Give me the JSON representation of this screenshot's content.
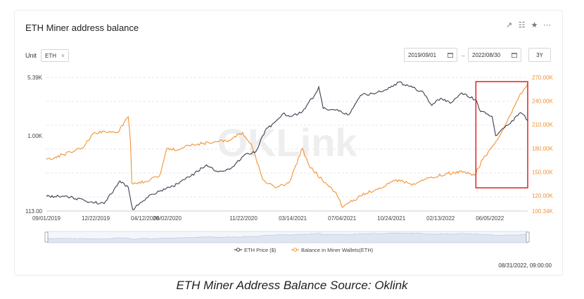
{
  "header": {
    "title": "ETH Miner address balance"
  },
  "toolbar": {
    "icons": [
      "share-icon",
      "table-icon",
      "star-icon",
      "more-icon"
    ]
  },
  "unit": {
    "label": "Unit",
    "value": "ETH"
  },
  "dates": {
    "start": "2019/09/01",
    "end": "2022/08/30",
    "range": "3Y"
  },
  "watermark": "OKLink",
  "timestamp": "08/31/2022, 09:00:00",
  "caption": "ETH Miner Address Balance Source: Oklink",
  "colors": {
    "price": "#3d3d50",
    "balance": "#f39235",
    "highlight": "#e02020"
  },
  "chart_data": {
    "type": "line",
    "x_ticks": [
      "09/01/2019",
      "12/22/2019",
      "04/12/2020",
      "06/02/2020",
      "11/22/2020",
      "03/14/2021",
      "07/04/2021",
      "10/24/2021",
      "02/13/2022",
      "06/05/2022"
    ],
    "y_left_ticks": [
      "5.39K",
      "1.00K",
      "113.00"
    ],
    "y_left_scale": "log",
    "y_right_ticks": [
      "270.00K",
      "240.00K",
      "210.00K",
      "180.00K",
      "150.00K",
      "120.00K",
      "100.34K"
    ],
    "y_right_range": [
      100340,
      270000
    ],
    "series": [
      {
        "name": "ETH Price ($)",
        "axis": "left",
        "points": [
          [
            "2019-09-01",
            172
          ],
          [
            "2019-10-15",
            175
          ],
          [
            "2019-12-01",
            150
          ],
          [
            "2020-01-10",
            140
          ],
          [
            "2020-02-15",
            270
          ],
          [
            "2020-03-05",
            225
          ],
          [
            "2020-03-15",
            118
          ],
          [
            "2020-04-15",
            165
          ],
          [
            "2020-05-15",
            200
          ],
          [
            "2020-06-15",
            232
          ],
          [
            "2020-07-25",
            310
          ],
          [
            "2020-08-30",
            430
          ],
          [
            "2020-09-25",
            350
          ],
          [
            "2020-10-25",
            390
          ],
          [
            "2020-11-25",
            580
          ],
          [
            "2020-12-20",
            630
          ],
          [
            "2021-01-10",
            1150
          ],
          [
            "2021-02-05",
            1550
          ],
          [
            "2021-02-20",
            1900
          ],
          [
            "2021-03-10",
            1750
          ],
          [
            "2021-04-05",
            2000
          ],
          [
            "2021-05-05",
            3400
          ],
          [
            "2021-05-12",
            4100
          ],
          [
            "2021-05-22",
            2200
          ],
          [
            "2021-06-20",
            2100
          ],
          [
            "2021-07-20",
            1850
          ],
          [
            "2021-08-15",
            3200
          ],
          [
            "2021-09-10",
            3400
          ],
          [
            "2021-10-15",
            3800
          ],
          [
            "2021-11-10",
            4700
          ],
          [
            "2021-12-05",
            4150
          ],
          [
            "2022-01-05",
            3500
          ],
          [
            "2022-01-24",
            2400
          ],
          [
            "2022-02-13",
            2950
          ],
          [
            "2022-03-10",
            2600
          ],
          [
            "2022-04-02",
            3450
          ],
          [
            "2022-05-05",
            2800
          ],
          [
            "2022-05-15",
            2000
          ],
          [
            "2022-06-10",
            1750
          ],
          [
            "2022-06-18",
            1000
          ],
          [
            "2022-07-15",
            1350
          ],
          [
            "2022-08-14",
            1950
          ],
          [
            "2022-08-30",
            1550
          ]
        ]
      },
      {
        "name": "Balance in Miner Wallets(ETH)",
        "axis": "right",
        "points": [
          [
            "2019-09-01",
            166000
          ],
          [
            "2019-10-10",
            172000
          ],
          [
            "2019-11-20",
            180000
          ],
          [
            "2019-12-15",
            198000
          ],
          [
            "2020-01-10",
            202000
          ],
          [
            "2020-02-10",
            200000
          ],
          [
            "2020-03-05",
            220000
          ],
          [
            "2020-03-10",
            188000
          ],
          [
            "2020-03-13",
            136000
          ],
          [
            "2020-04-15",
            138000
          ],
          [
            "2020-05-15",
            145000
          ],
          [
            "2020-06-01",
            180000
          ],
          [
            "2020-06-25",
            178000
          ],
          [
            "2020-07-15",
            184000
          ],
          [
            "2020-08-20",
            186000
          ],
          [
            "2020-09-20",
            188000
          ],
          [
            "2020-10-20",
            190000
          ],
          [
            "2020-11-20",
            200000
          ],
          [
            "2020-12-10",
            185000
          ],
          [
            "2021-01-05",
            140000
          ],
          [
            "2021-02-01",
            130000
          ],
          [
            "2021-03-05",
            136000
          ],
          [
            "2021-04-05",
            180000
          ],
          [
            "2021-04-20",
            158000
          ],
          [
            "2021-05-20",
            140000
          ],
          [
            "2021-06-20",
            124000
          ],
          [
            "2021-07-05",
            105000
          ],
          [
            "2021-08-15",
            120000
          ],
          [
            "2021-09-20",
            128000
          ],
          [
            "2021-11-10",
            140000
          ],
          [
            "2021-12-10",
            133000
          ],
          [
            "2022-01-20",
            143000
          ],
          [
            "2022-03-01",
            148000
          ],
          [
            "2022-04-10",
            150000
          ],
          [
            "2022-05-01",
            146000
          ],
          [
            "2022-05-20",
            166000
          ],
          [
            "2022-06-15",
            185000
          ],
          [
            "2022-07-15",
            215000
          ],
          [
            "2022-08-10",
            245000
          ],
          [
            "2022-08-30",
            262000
          ]
        ]
      }
    ],
    "annotations": [
      {
        "type": "rectangle",
        "from": "2022-05-01",
        "to": "2022-08-30"
      }
    ],
    "legend": "bottom-center",
    "grid": true
  }
}
